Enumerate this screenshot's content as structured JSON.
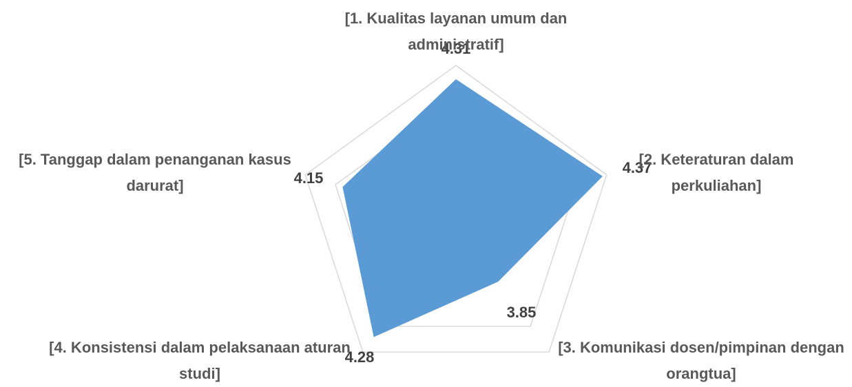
{
  "chart_data": {
    "type": "radar",
    "categories": [
      "[1. Kualitas layanan umum dan administratif]",
      "[2. Keteraturan dalam perkuliahan]",
      "[3. Komunikasi dosen/pimpinan dengan orangtua]",
      "[4. Konsistensi dalam pelaksanaan aturan studi]",
      "[5. Tanggap dalam penanganan kasus darurat]"
    ],
    "values": [
      4.31,
      4.37,
      3.85,
      4.28,
      4.15
    ],
    "color": "#5b9bd5",
    "ylim": [
      3.4,
      4.4
    ],
    "yticks": [
      3.8,
      4.2,
      4.4
    ],
    "grid": true
  }
}
